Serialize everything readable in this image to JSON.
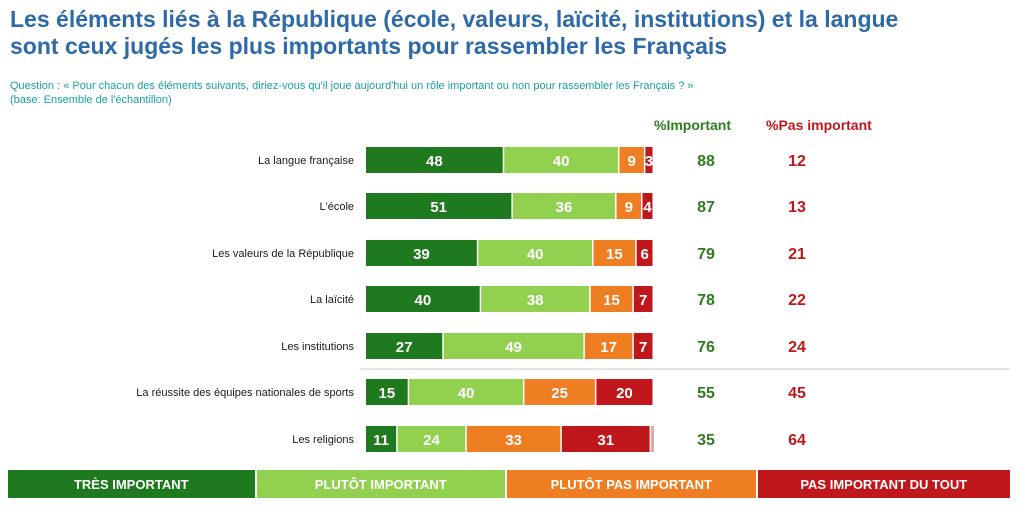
{
  "header": {
    "title_line1": "Les éléments liés à la République (école, valeurs, laïcité, institutions) et la langue",
    "title_line2": "sont ceux jugés les plus importants pour rassembler les Français",
    "question": "Question : « Pour chacun des éléments suivants, diriez-vous qu'il joue aujourd'hui un rôle important ou non pour rassembler les Français ? »",
    "base": "(base: Ensemble de l'échantillon)"
  },
  "columns": {
    "important": "%Important",
    "pas_important": "%Pas important"
  },
  "colors": {
    "tres": "#1f7a1f",
    "plutot": "#92d050",
    "plutot_pas": "#ef7d22",
    "pas_du_tout": "#c0171c"
  },
  "chart_data": {
    "type": "bar",
    "stacked": true,
    "orientation": "horizontal",
    "categories": [
      "La langue française",
      "L'école",
      "Les valeurs de la République",
      "La laïcité",
      "Les institutions",
      "La réussite des équipes nationales de sports",
      "Les religions"
    ],
    "series": [
      {
        "name": "TRÈS IMPORTANT",
        "values": [
          48,
          51,
          39,
          40,
          27,
          15,
          11
        ]
      },
      {
        "name": "PLUTÔT IMPORTANT",
        "values": [
          40,
          36,
          40,
          38,
          49,
          40,
          24
        ]
      },
      {
        "name": "PLUTÔT PAS IMPORTANT",
        "values": [
          9,
          9,
          15,
          15,
          17,
          25,
          33
        ]
      },
      {
        "name": "PAS IMPORTANT DU TOUT",
        "values": [
          3,
          4,
          6,
          7,
          7,
          20,
          31
        ]
      }
    ],
    "residual": [
      0,
      0,
      0,
      0,
      0,
      0,
      1
    ],
    "important": [
      88,
      87,
      79,
      78,
      76,
      55,
      35
    ],
    "pas_important": [
      12,
      13,
      21,
      22,
      24,
      45,
      64
    ]
  }
}
